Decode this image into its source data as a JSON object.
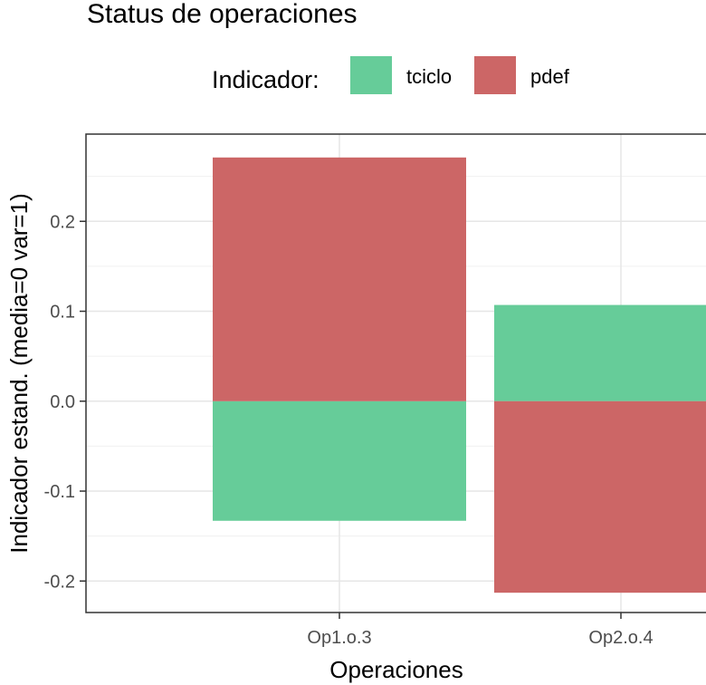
{
  "chart_data": {
    "type": "bar",
    "stacked": true,
    "title": "Status de operaciones",
    "xlabel": "Operaciones",
    "ylabel": "Indicador estand. (media=0 var=1)",
    "categories": [
      "Op1.o.3",
      "Op2.o.4"
    ],
    "series": [
      {
        "name": "tciclo",
        "values": [
          -0.133,
          0.107
        ],
        "color": "#66cc99"
      },
      {
        "name": "pdef",
        "values": [
          0.271,
          -0.213
        ],
        "color": "#cc6666"
      }
    ],
    "ylim": [
      -0.235,
      0.297
    ],
    "yticks": [
      -0.2,
      -0.1,
      0.0,
      0.1,
      0.2
    ],
    "ytick_labels": [
      "-0.2",
      "-0.1",
      "0.0",
      "0.1",
      "0.2"
    ],
    "grid": true,
    "legend": {
      "title": "Indicador:",
      "position": "top"
    }
  }
}
